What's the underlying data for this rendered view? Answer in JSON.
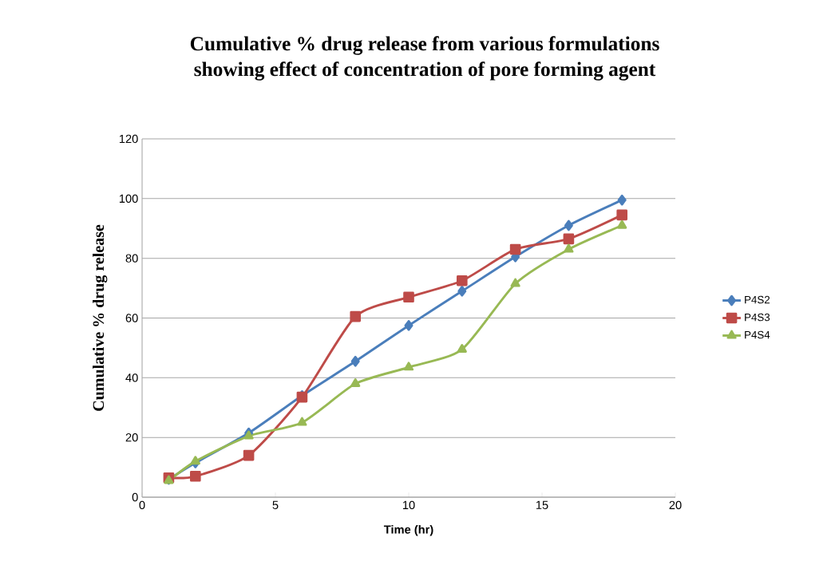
{
  "chart_data": {
    "type": "line",
    "title": "Cumulative % drug release from various formulations\nshowing effect of concentration of pore forming agent",
    "xlabel": "Time (hr)",
    "ylabel": "Cumulative % drug release",
    "x": [
      1,
      2,
      4,
      6,
      8,
      10,
      12,
      14,
      16,
      18
    ],
    "series": [
      {
        "name": "P4S2",
        "color": "#4a7ebb",
        "marker": "diamond",
        "values": [
          6,
          11.5,
          21.5,
          34,
          45.5,
          57.5,
          69,
          80.5,
          91,
          99.5
        ]
      },
      {
        "name": "P4S3",
        "color": "#be4b48",
        "marker": "square",
        "values": [
          6.5,
          7,
          14,
          33.5,
          60.5,
          67,
          72.5,
          83,
          86.5,
          94.5
        ]
      },
      {
        "name": "P4S4",
        "color": "#98b954",
        "marker": "triangle",
        "values": [
          5.5,
          12,
          20.5,
          25,
          38,
          43.5,
          49.5,
          71.5,
          83,
          91
        ]
      }
    ],
    "xlim": [
      0,
      20
    ],
    "xticks": [
      0,
      5,
      10,
      15,
      20
    ],
    "ylim": [
      0,
      120
    ],
    "yticks": [
      0,
      20,
      40,
      60,
      80,
      100,
      120
    ],
    "grid": "y",
    "legend": "right",
    "line_style": "solid"
  }
}
